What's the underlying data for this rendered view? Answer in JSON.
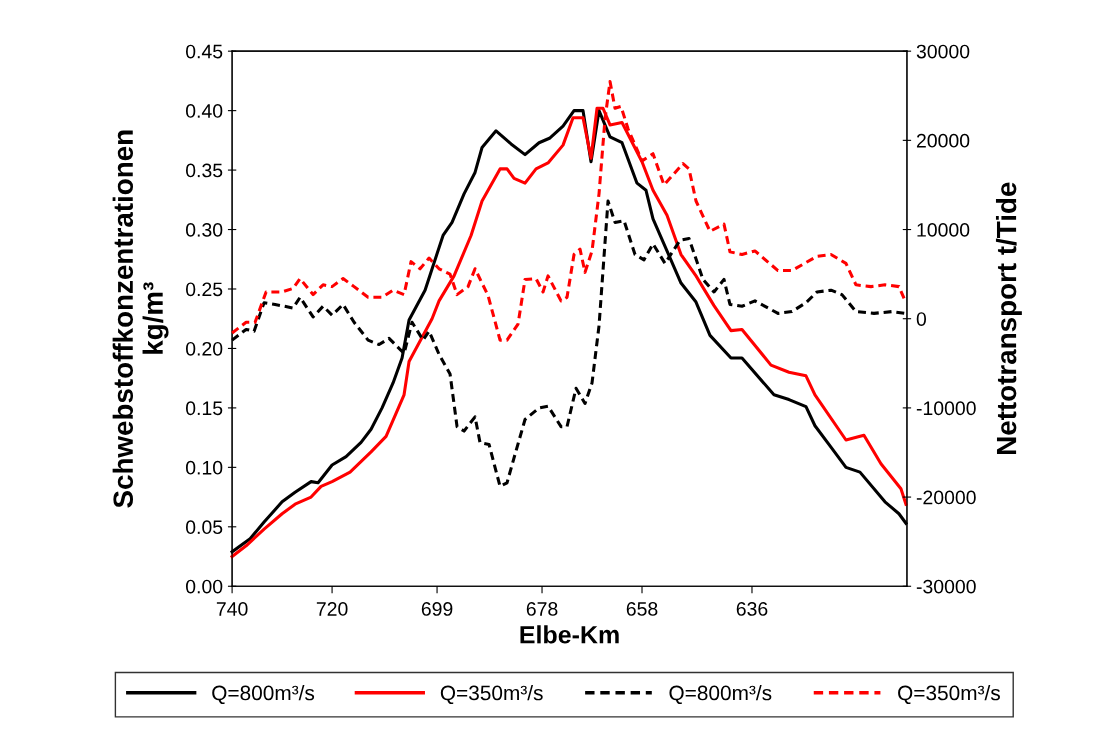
{
  "chart_data": {
    "type": "line",
    "xlabel": "Elbe-Km",
    "ylabel": "Schwebstoffkonzentrationen\nkg/m³",
    "y2label": "Nettotransport t/Tide",
    "xlim": [
      740,
      605
    ],
    "xticks": [
      740,
      720,
      699,
      678,
      658,
      636
    ],
    "ylim": [
      0,
      0.45
    ],
    "yticks": [
      {
        "value": 0,
        "label": "0.00"
      },
      0.05,
      {
        "value": 0.1,
        "label": "0.10"
      },
      0.15,
      {
        "value": 0.2,
        "label": "0.20"
      },
      0.25,
      {
        "value": 0.3,
        "label": "0.30"
      },
      0.35,
      {
        "value": 0.4,
        "label": "0.40"
      },
      0.45
    ],
    "y2lim": [
      -30000,
      30000
    ],
    "y2ticks": [
      -30000,
      -20000,
      -10000,
      0,
      10000,
      20000,
      30000
    ],
    "grid": false,
    "legend": "bottom",
    "marker": "none",
    "series": [
      {
        "name": "Q=800m³/s",
        "color": "#000000",
        "line_style": "solid",
        "x": [
          740,
          736.4,
          733.6,
          730.0,
          727.4,
          724.2,
          722.8,
          720.0,
          717.2,
          714.2,
          712.2,
          710.0,
          707.8,
          706.0,
          704.6,
          701.4,
          697.8,
          696.0,
          693.6,
          691.4,
          690.0,
          687.2,
          684.2,
          681.4,
          678.6,
          676.4,
          673.8,
          671.6,
          669.8,
          668.2,
          666.6,
          664.4,
          662.0,
          659.0,
          657.2,
          655.8,
          650.2,
          647.2,
          644.4,
          640.2,
          638.0,
          631.6,
          628.6,
          625.2,
          623.4,
          620.2,
          617.2,
          614.4,
          609.4,
          606.6,
          605.2
        ],
        "values": [
          0.029,
          0.04,
          0.054,
          0.071,
          0.079,
          0.088,
          0.087,
          0.102,
          0.109,
          0.121,
          0.132,
          0.15,
          0.171,
          0.192,
          0.224,
          0.249,
          0.295,
          0.306,
          0.33,
          0.348,
          0.369,
          0.383,
          0.372,
          0.363,
          0.373,
          0.377,
          0.387,
          0.4,
          0.4,
          0.357,
          0.4,
          0.378,
          0.373,
          0.339,
          0.333,
          0.309,
          0.255,
          0.239,
          0.211,
          0.192,
          0.192,
          0.161,
          0.157,
          0.151,
          0.135,
          0.117,
          0.1,
          0.096,
          0.071,
          0.061,
          0.053
        ]
      },
      {
        "name": "Q=350m³/s",
        "color": "#ff0000",
        "line_style": "solid",
        "x": [
          740,
          737.2,
          733.6,
          730.0,
          727.4,
          724.2,
          722.2,
          720.0,
          716.4,
          712.2,
          709.2,
          705.6,
          704.6,
          700.0,
          698.6,
          695.6,
          692.2,
          690.0,
          686.4,
          685.0,
          683.6,
          681.4,
          679.2,
          676.8,
          673.8,
          671.8,
          669.8,
          668.2,
          667.0,
          665.8,
          664.4,
          662.0,
          658.0,
          655.8,
          653.0,
          650.2,
          647.2,
          643.6,
          640.2,
          638.0,
          632.2,
          628.6,
          625.2,
          623.4,
          617.2,
          613.6,
          610.2,
          606.2,
          605.2
        ],
        "values": [
          0.025,
          0.034,
          0.048,
          0.061,
          0.069,
          0.075,
          0.084,
          0.088,
          0.096,
          0.113,
          0.126,
          0.161,
          0.189,
          0.225,
          0.24,
          0.261,
          0.295,
          0.324,
          0.351,
          0.351,
          0.343,
          0.339,
          0.351,
          0.356,
          0.371,
          0.394,
          0.394,
          0.36,
          0.402,
          0.402,
          0.388,
          0.39,
          0.357,
          0.333,
          0.312,
          0.279,
          0.261,
          0.236,
          0.215,
          0.216,
          0.186,
          0.18,
          0.177,
          0.161,
          0.123,
          0.127,
          0.103,
          0.082,
          0.069
        ]
      },
      {
        "name": "Q=800m³/s",
        "color": "#000000",
        "line_style": "dashed",
        "axis": "y2",
        "x": [
          740,
          737.2,
          735.6,
          733.6,
          731.4,
          727.8,
          726.4,
          723.8,
          721.8,
          720.0,
          717.8,
          715.6,
          712.8,
          710.6,
          708.6,
          705.6,
          704.0,
          701.8,
          700.6,
          698.6,
          696.4,
          695.0,
          693.6,
          691.4,
          690.4,
          688.6,
          686.4,
          685.0,
          683.6,
          681.4,
          678.6,
          676.8,
          674.2,
          673.0,
          671.2,
          669.4,
          668.0,
          666.6,
          664.8,
          663.4,
          661.6,
          659.4,
          657.6,
          655.8,
          653.4,
          650.4,
          648.6,
          645.8,
          643.6,
          641.6,
          640.4,
          638.0,
          635.4,
          630.8,
          628.0,
          625.2,
          623.0,
          620.2,
          618.0,
          615.2,
          611.6,
          608.0,
          605.4
        ],
        "values": [
          -2400,
          -1200,
          -1400,
          1800,
          1600,
          1200,
          2400,
          200,
          1400,
          400,
          1600,
          -400,
          -2400,
          -2900,
          -2200,
          -3900,
          -400,
          -2400,
          -1400,
          -4000,
          -6200,
          -12100,
          -12600,
          -11000,
          -13900,
          -14100,
          -18800,
          -18400,
          -15600,
          -11300,
          -10000,
          -9800,
          -12100,
          -12100,
          -7800,
          -9500,
          -7200,
          -800,
          13200,
          10800,
          11000,
          7200,
          6600,
          8400,
          6200,
          8800,
          9000,
          4400,
          3000,
          4400,
          1600,
          1400,
          2000,
          600,
          800,
          1800,
          3000,
          3200,
          2700,
          800,
          600,
          800,
          600
        ]
      },
      {
        "name": "Q=350m³/s",
        "color": "#ff0000",
        "line_style": "dashed",
        "axis": "y2",
        "x": [
          740,
          737.2,
          735.4,
          733.2,
          730.0,
          727.8,
          726.4,
          723.8,
          721.8,
          720.0,
          717.8,
          715.6,
          712.8,
          710.0,
          707.8,
          705.6,
          704.2,
          702.4,
          700.6,
          698.6,
          696.4,
          695.0,
          692.8,
          691.4,
          688.8,
          686.4,
          685.0,
          682.8,
          681.4,
          679.2,
          677.8,
          676.8,
          674.2,
          673.0,
          671.6,
          670.4,
          669.4,
          668.0,
          666.6,
          665.4,
          664.4,
          663.4,
          662.2,
          660.8,
          658.0,
          655.8,
          653.6,
          649.8,
          648.6,
          647.2,
          644.4,
          641.6,
          640.4,
          638.0,
          635.4,
          630.8,
          628.0,
          623.0,
          620.2,
          617.2,
          615.2,
          612.2,
          609.4,
          606.6,
          605.2
        ],
        "values": [
          -1600,
          -400,
          -400,
          3000,
          3000,
          3400,
          4500,
          2700,
          3800,
          3600,
          4500,
          3600,
          2400,
          2400,
          3200,
          2700,
          6400,
          5600,
          6800,
          5600,
          5000,
          2700,
          3600,
          5600,
          2600,
          -2400,
          -2400,
          -600,
          4400,
          4500,
          3000,
          4800,
          2000,
          2400,
          7200,
          7800,
          5200,
          7600,
          14000,
          22400,
          26600,
          23600,
          23800,
          21300,
          17700,
          18500,
          15000,
          17400,
          16800,
          13200,
          9800,
          10600,
          7500,
          7200,
          7600,
          5400,
          5400,
          7000,
          7200,
          6200,
          3800,
          3600,
          3800,
          3600,
          1800
        ]
      }
    ]
  }
}
